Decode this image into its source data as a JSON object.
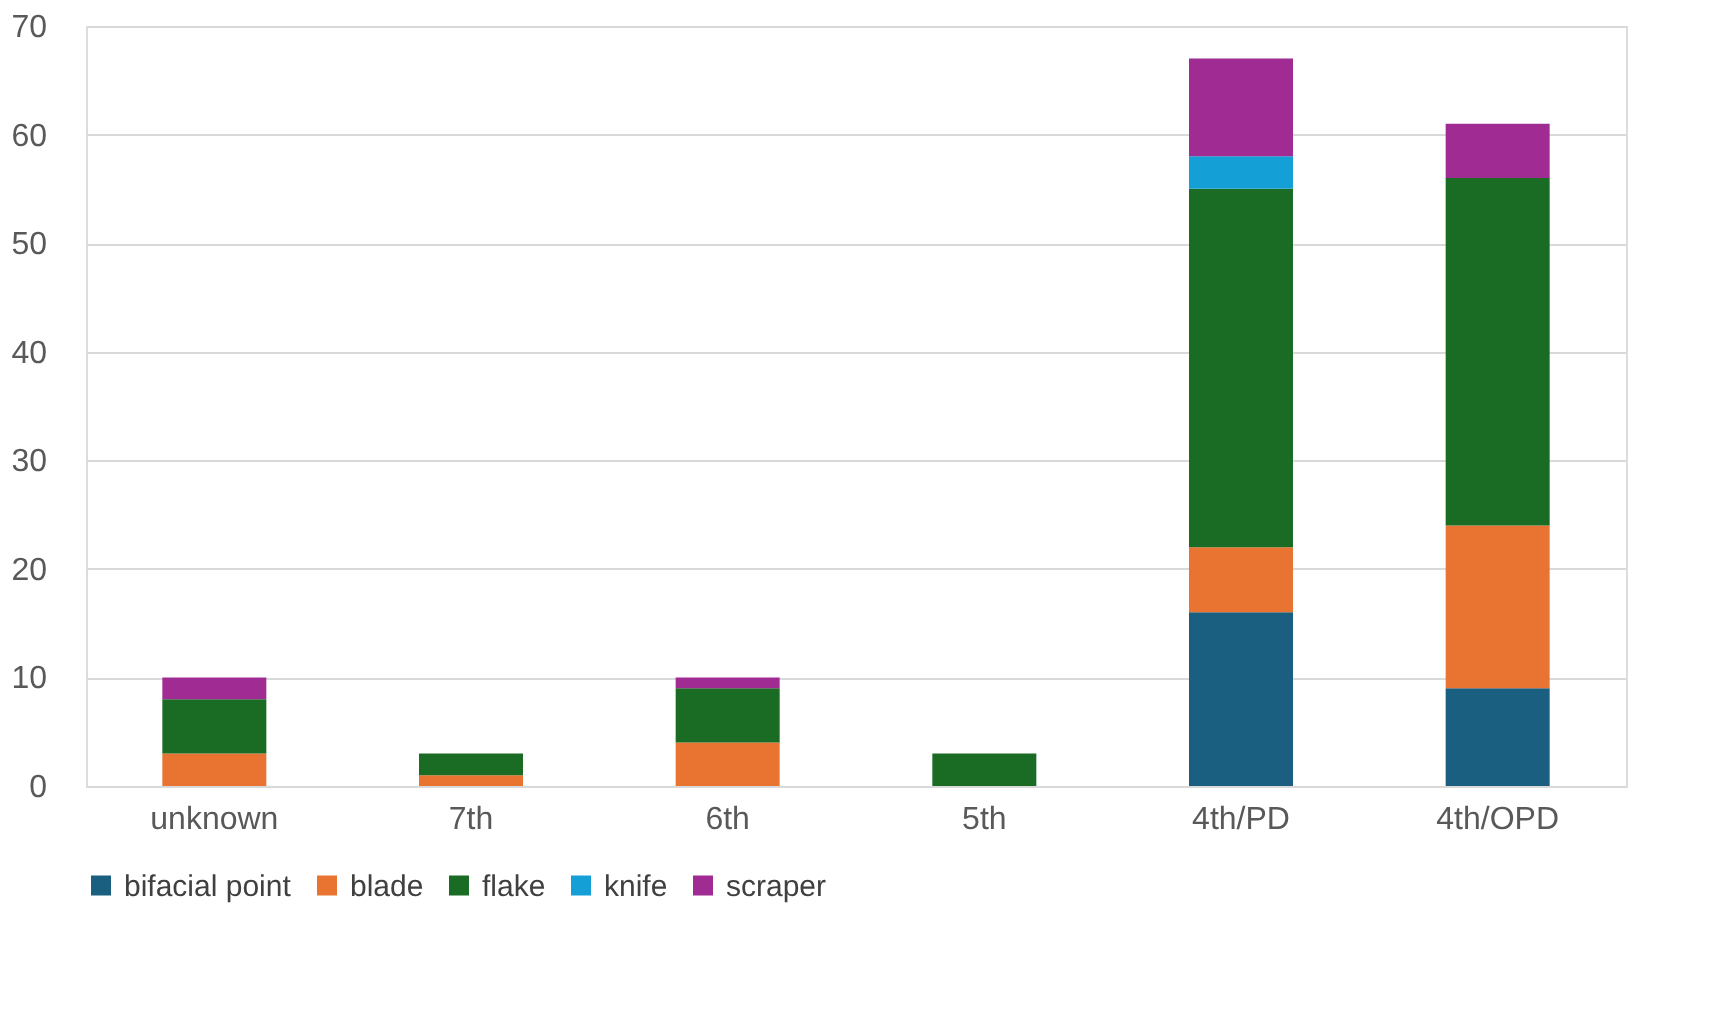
{
  "chart_data": {
    "type": "bar",
    "stacked": true,
    "categories": [
      "unknown",
      "7th",
      "6th",
      "5th",
      "4th/PD",
      "4th/OPD"
    ],
    "series": [
      {
        "name": "bifacial point",
        "color": "#1a5e80",
        "values": [
          0,
          0,
          0,
          0,
          16,
          9
        ]
      },
      {
        "name": "blade",
        "color": "#e97431",
        "values": [
          3,
          1,
          4,
          0,
          6,
          15
        ]
      },
      {
        "name": "flake",
        "color": "#1a6b24",
        "values": [
          5,
          2,
          5,
          3,
          33,
          32
        ]
      },
      {
        "name": "knife",
        "color": "#149fd6",
        "values": [
          0,
          0,
          0,
          0,
          3,
          0
        ]
      },
      {
        "name": "scraper",
        "color": "#a02c93",
        "values": [
          2,
          0,
          1,
          0,
          9,
          5
        ]
      }
    ],
    "ylim": [
      0,
      70
    ],
    "yticks": [
      0,
      10,
      20,
      30,
      40,
      50,
      60,
      70
    ],
    "grid": "y",
    "legend": "bottom"
  }
}
